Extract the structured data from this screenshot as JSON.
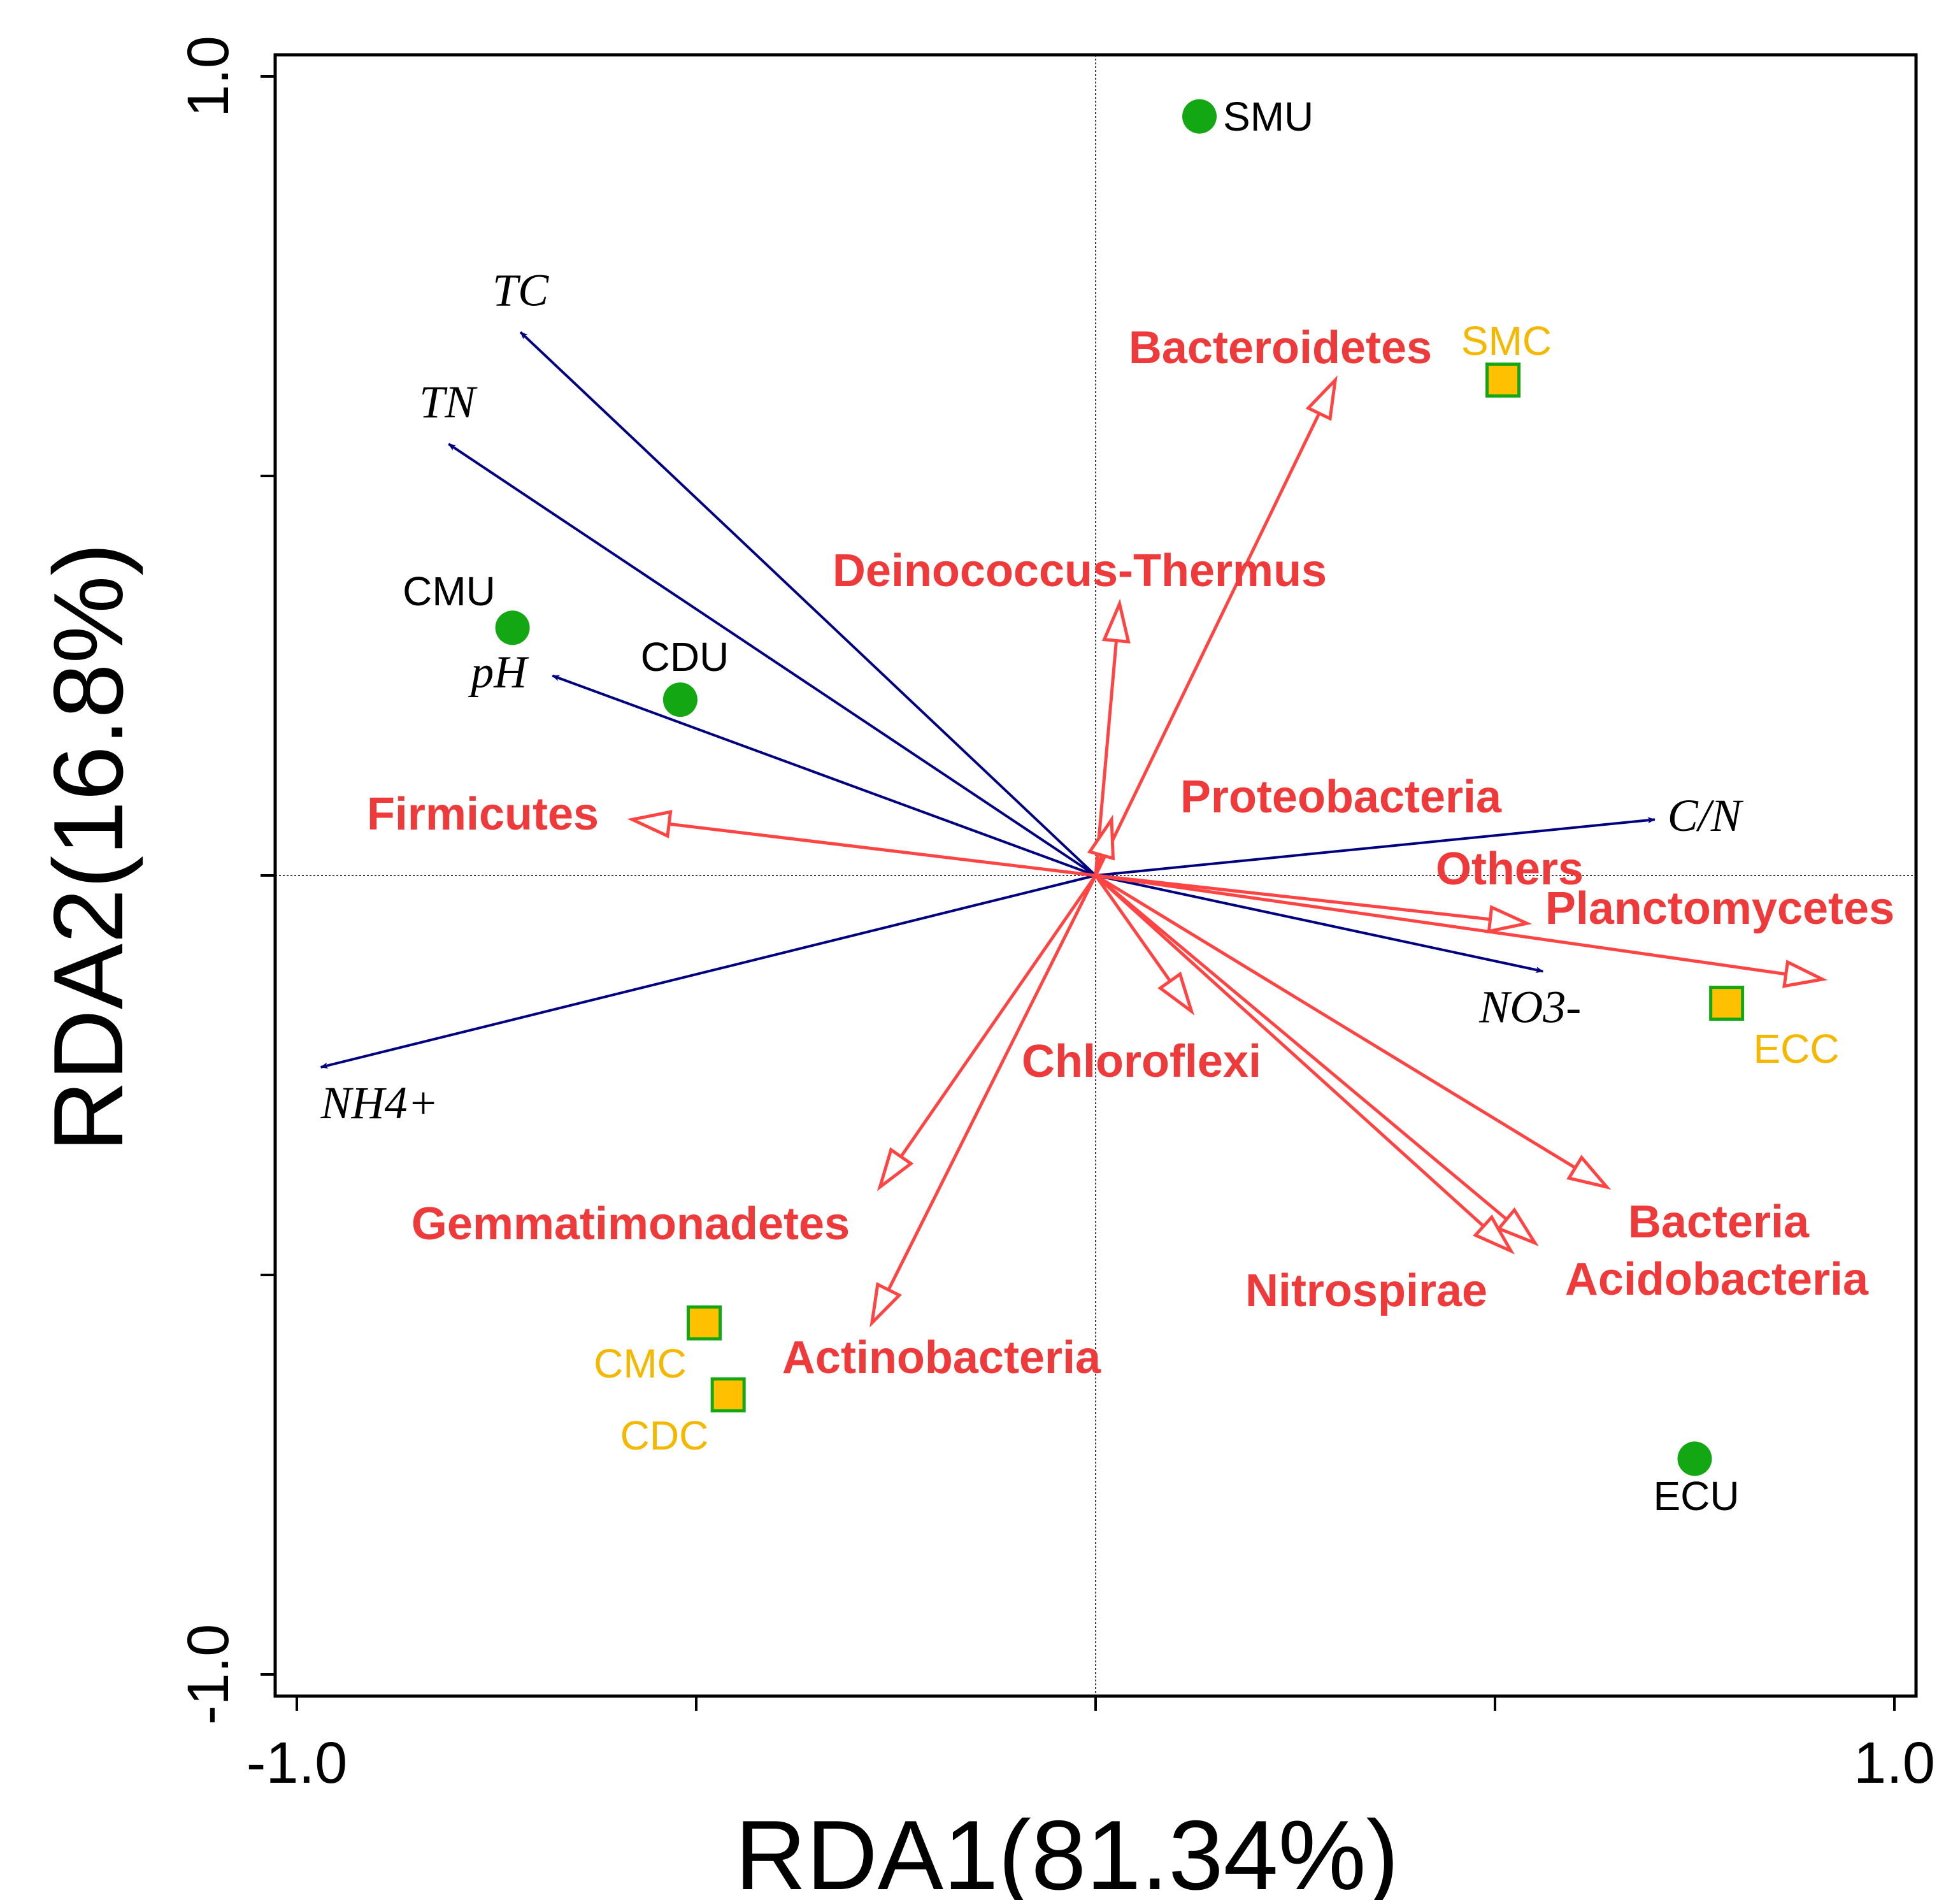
{
  "chart_data": {
    "type": "scatter",
    "subtype": "rda-biplot",
    "xlabel": "RDA1(81.34%)",
    "ylabel": "RDA2(16.8%)",
    "xlim": [
      -1.03,
      1.03
    ],
    "ylim": [
      -1.03,
      1.03
    ],
    "x_ticks": [
      -1.0,
      -0.5,
      0,
      0.5,
      1.0
    ],
    "y_ticks": [
      -1.0,
      -0.5,
      0,
      0.5,
      1.0
    ],
    "x_tick_labels": [
      {
        "value": -1.0,
        "label": "-1.0"
      },
      {
        "value": 1.0,
        "label": "1.0"
      }
    ],
    "y_tick_labels": [
      {
        "value": 1.0,
        "label": "1.0"
      },
      {
        "value": -1.0,
        "label": "-1.0"
      }
    ],
    "colors": {
      "env_arrow": "#000080",
      "taxon_arrow": "#ff4444",
      "taxon_label": "#ee3a3a",
      "site_u": "#13a813",
      "site_c_fill": "#ffc000",
      "site_c_stroke": "#13a813",
      "site_c_label": "#f5b800",
      "site_u_label": "#000000"
    },
    "env_vectors": [
      {
        "name": "TC",
        "x": -0.72,
        "y": 0.68
      },
      {
        "name": "TN",
        "x": -0.81,
        "y": 0.54
      },
      {
        "name": "pH",
        "x": -0.68,
        "y": 0.25
      },
      {
        "name": "C/N",
        "x": 0.7,
        "y": 0.07
      },
      {
        "name": "NO3-",
        "x": 0.56,
        "y": -0.12
      },
      {
        "name": "NH4+",
        "x": -0.97,
        "y": -0.24
      }
    ],
    "taxa_vectors": [
      {
        "name": "Bacteroidetes",
        "x": 0.3,
        "y": 0.62
      },
      {
        "name": "Deinococcus-Thermus",
        "x": 0.03,
        "y": 0.34
      },
      {
        "name": "Proteobacteria",
        "x": 0.02,
        "y": 0.07
      },
      {
        "name": "Firmicutes",
        "x": -0.58,
        "y": 0.07
      },
      {
        "name": "Others",
        "x": 0.54,
        "y": -0.06
      },
      {
        "name": "Planctomycetes",
        "x": 0.91,
        "y": -0.13
      },
      {
        "name": "Chloroflexi",
        "x": 0.12,
        "y": -0.17
      },
      {
        "name": "Gemmatimonadetes",
        "x": -0.27,
        "y": -0.39
      },
      {
        "name": "Actinobacteria",
        "x": -0.28,
        "y": -0.56
      },
      {
        "name": "Nitrospirae",
        "x": 0.52,
        "y": -0.47
      },
      {
        "name": "Acidobacteria",
        "x": 0.55,
        "y": -0.46
      },
      {
        "name": "Bacteria",
        "x": 0.64,
        "y": -0.39
      }
    ],
    "sites": [
      {
        "name": "SMU",
        "group": "U",
        "x": 0.13,
        "y": 0.95
      },
      {
        "name": "CMU",
        "group": "U",
        "x": -0.73,
        "y": 0.31
      },
      {
        "name": "CDU",
        "group": "U",
        "x": -0.52,
        "y": 0.22
      },
      {
        "name": "ECU",
        "group": "U",
        "x": 0.75,
        "y": -0.73
      },
      {
        "name": "SMC",
        "group": "C",
        "x": 0.51,
        "y": 0.62
      },
      {
        "name": "ECC",
        "group": "C",
        "x": 0.79,
        "y": -0.16
      },
      {
        "name": "CMC",
        "group": "C",
        "x": -0.49,
        "y": -0.56
      },
      {
        "name": "CDC",
        "group": "C",
        "x": -0.46,
        "y": -0.65
      }
    ]
  }
}
